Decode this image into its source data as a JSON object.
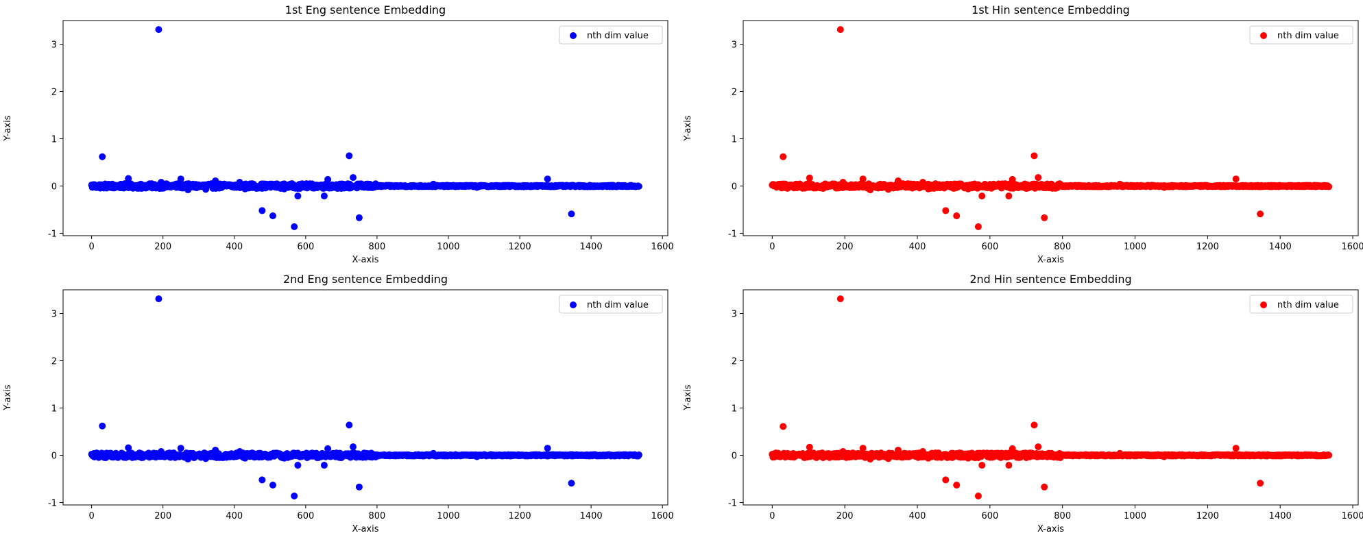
{
  "chart_data": [
    {
      "type": "scatter",
      "title": "1st Eng sentence Embedding",
      "xlabel": "X-axis",
      "ylabel": "Y-axis",
      "xlim": [
        -80,
        1615
      ],
      "ylim": [
        -1.05,
        3.5
      ],
      "xticks": [
        0,
        200,
        400,
        600,
        800,
        1000,
        1200,
        1400,
        1600
      ],
      "yticks": [
        -1,
        0,
        1,
        2,
        3
      ],
      "grid": false,
      "legend_position": "top-right",
      "color": "#0000ff",
      "series": [
        {
          "name": "nth dim value",
          "x_range": [
            0,
            1535
          ],
          "baseline_y": 0.0,
          "points": [
            [
              30,
              0.62
            ],
            [
              103,
              0.16
            ],
            [
              188,
              3.31
            ],
            [
              250,
              0.15
            ],
            [
              347,
              0.11
            ],
            [
              415,
              0.08
            ],
            [
              478,
              -0.52
            ],
            [
              508,
              -0.63
            ],
            [
              568,
              -0.86
            ],
            [
              578,
              -0.21
            ],
            [
              652,
              -0.21
            ],
            [
              662,
              0.14
            ],
            [
              722,
              0.64
            ],
            [
              733,
              0.18
            ],
            [
              750,
              -0.67
            ],
            [
              958,
              0.04
            ],
            [
              1278,
              0.15
            ],
            [
              1345,
              -0.59
            ],
            [
              270,
              -0.08
            ],
            [
              320,
              -0.07
            ],
            [
              195,
              0.08
            ],
            [
              5,
              0.03
            ],
            [
              60,
              -0.04
            ],
            [
              140,
              -0.05
            ],
            [
              430,
              -0.06
            ],
            [
              540,
              -0.06
            ],
            [
              700,
              -0.05
            ],
            [
              770,
              0.04
            ],
            [
              1080,
              -0.03
            ],
            [
              450,
              0.05
            ]
          ]
        }
      ]
    },
    {
      "type": "scatter",
      "title": "1st Hin sentence Embedding",
      "xlabel": "X-axis",
      "ylabel": "Y-axis",
      "xlim": [
        -80,
        1615
      ],
      "ylim": [
        -1.05,
        3.5
      ],
      "xticks": [
        0,
        200,
        400,
        600,
        800,
        1000,
        1200,
        1400,
        1600
      ],
      "yticks": [
        -1,
        0,
        1,
        2,
        3
      ],
      "grid": false,
      "legend_position": "top-right",
      "color": "#ff0000",
      "series": [
        {
          "name": "nth dim value",
          "x_range": [
            0,
            1535
          ],
          "baseline_y": 0.0,
          "points": [
            [
              30,
              0.62
            ],
            [
              103,
              0.17
            ],
            [
              188,
              3.31
            ],
            [
              250,
              0.15
            ],
            [
              347,
              0.11
            ],
            [
              415,
              0.08
            ],
            [
              478,
              -0.52
            ],
            [
              508,
              -0.63
            ],
            [
              568,
              -0.86
            ],
            [
              578,
              -0.21
            ],
            [
              652,
              -0.21
            ],
            [
              662,
              0.14
            ],
            [
              722,
              0.64
            ],
            [
              733,
              0.18
            ],
            [
              750,
              -0.67
            ],
            [
              958,
              0.04
            ],
            [
              1278,
              0.15
            ],
            [
              1345,
              -0.59
            ],
            [
              270,
              -0.08
            ],
            [
              320,
              -0.07
            ],
            [
              195,
              0.08
            ],
            [
              5,
              0.03
            ],
            [
              60,
              -0.04
            ],
            [
              140,
              -0.05
            ],
            [
              430,
              -0.06
            ],
            [
              540,
              -0.06
            ],
            [
              700,
              -0.05
            ],
            [
              770,
              0.04
            ],
            [
              1080,
              -0.03
            ],
            [
              450,
              0.05
            ]
          ]
        }
      ]
    },
    {
      "type": "scatter",
      "title": "2nd Eng sentence Embedding",
      "xlabel": "X-axis",
      "ylabel": "Y-axis",
      "xlim": [
        -80,
        1615
      ],
      "ylim": [
        -1.05,
        3.5
      ],
      "xticks": [
        0,
        200,
        400,
        600,
        800,
        1000,
        1200,
        1400,
        1600
      ],
      "yticks": [
        -1,
        0,
        1,
        2,
        3
      ],
      "grid": false,
      "legend_position": "top-right",
      "color": "#0000ff",
      "series": [
        {
          "name": "nth dim value",
          "x_range": [
            0,
            1535
          ],
          "baseline_y": 0.0,
          "points": [
            [
              30,
              0.62
            ],
            [
              103,
              0.16
            ],
            [
              188,
              3.31
            ],
            [
              250,
              0.15
            ],
            [
              347,
              0.11
            ],
            [
              415,
              0.08
            ],
            [
              478,
              -0.52
            ],
            [
              508,
              -0.63
            ],
            [
              568,
              -0.86
            ],
            [
              578,
              -0.21
            ],
            [
              652,
              -0.21
            ],
            [
              662,
              0.14
            ],
            [
              722,
              0.64
            ],
            [
              733,
              0.18
            ],
            [
              750,
              -0.67
            ],
            [
              958,
              0.04
            ],
            [
              1278,
              0.15
            ],
            [
              1345,
              -0.59
            ],
            [
              270,
              -0.08
            ],
            [
              320,
              -0.07
            ],
            [
              195,
              0.08
            ],
            [
              5,
              0.03
            ],
            [
              60,
              -0.04
            ],
            [
              140,
              -0.05
            ],
            [
              430,
              -0.06
            ],
            [
              540,
              -0.06
            ],
            [
              700,
              -0.05
            ],
            [
              770,
              0.04
            ],
            [
              1080,
              -0.03
            ],
            [
              450,
              0.05
            ]
          ]
        }
      ]
    },
    {
      "type": "scatter",
      "title": "2nd Hin sentence Embedding",
      "xlabel": "X-axis",
      "ylabel": "Y-axis",
      "xlim": [
        -80,
        1615
      ],
      "ylim": [
        -1.05,
        3.5
      ],
      "xticks": [
        0,
        200,
        400,
        600,
        800,
        1000,
        1200,
        1400,
        1600
      ],
      "yticks": [
        -1,
        0,
        1,
        2,
        3
      ],
      "grid": false,
      "legend_position": "top-right",
      "color": "#ff0000",
      "series": [
        {
          "name": "nth dim value",
          "x_range": [
            0,
            1535
          ],
          "baseline_y": 0.0,
          "points": [
            [
              30,
              0.61
            ],
            [
              103,
              0.17
            ],
            [
              188,
              3.31
            ],
            [
              250,
              0.15
            ],
            [
              347,
              0.11
            ],
            [
              415,
              0.08
            ],
            [
              478,
              -0.52
            ],
            [
              508,
              -0.63
            ],
            [
              568,
              -0.86
            ],
            [
              578,
              -0.21
            ],
            [
              652,
              -0.21
            ],
            [
              662,
              0.14
            ],
            [
              722,
              0.64
            ],
            [
              733,
              0.18
            ],
            [
              750,
              -0.67
            ],
            [
              958,
              0.04
            ],
            [
              1278,
              0.15
            ],
            [
              1345,
              -0.59
            ],
            [
              270,
              -0.08
            ],
            [
              320,
              -0.07
            ],
            [
              195,
              0.08
            ],
            [
              5,
              0.03
            ],
            [
              60,
              -0.04
            ],
            [
              140,
              -0.05
            ],
            [
              430,
              -0.06
            ],
            [
              540,
              -0.06
            ],
            [
              700,
              -0.05
            ],
            [
              770,
              0.04
            ],
            [
              1080,
              -0.03
            ],
            [
              450,
              0.05
            ]
          ]
        }
      ]
    }
  ]
}
